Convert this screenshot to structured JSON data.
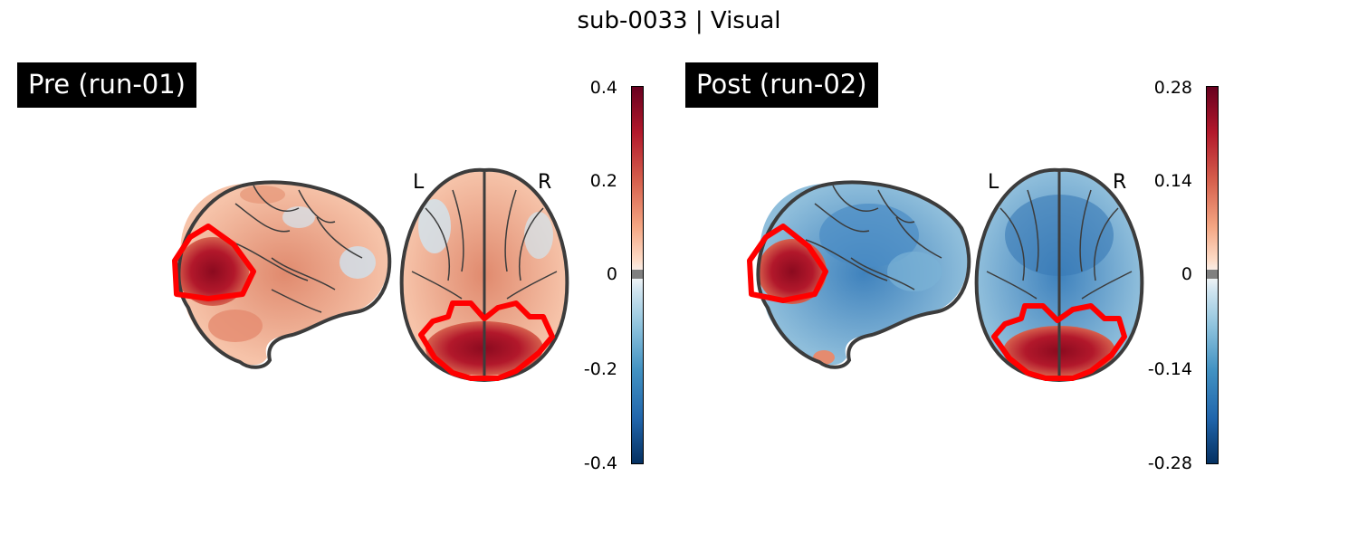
{
  "figure": {
    "title": "sub-0033 | Visual"
  },
  "panels": [
    {
      "label": "Pre (run-01)",
      "colorbar": {
        "max": "0.4",
        "upper": "0.2",
        "zero": "0",
        "lower": "-0.2",
        "min": "-0.4"
      },
      "orientation": {
        "left": "L",
        "right": "R"
      }
    },
    {
      "label": "Post (run-02)",
      "colorbar": {
        "max": "0.28",
        "upper": "0.14",
        "zero": "0",
        "lower": "-0.14",
        "min": "-0.28"
      },
      "orientation": {
        "left": "L",
        "right": "R"
      }
    }
  ],
  "colors": {
    "roi_outline": "#ff0000",
    "brain_outline": "#3c3c3c",
    "cmap_positive": "#b2182b",
    "cmap_negative": "#2166ac"
  }
}
